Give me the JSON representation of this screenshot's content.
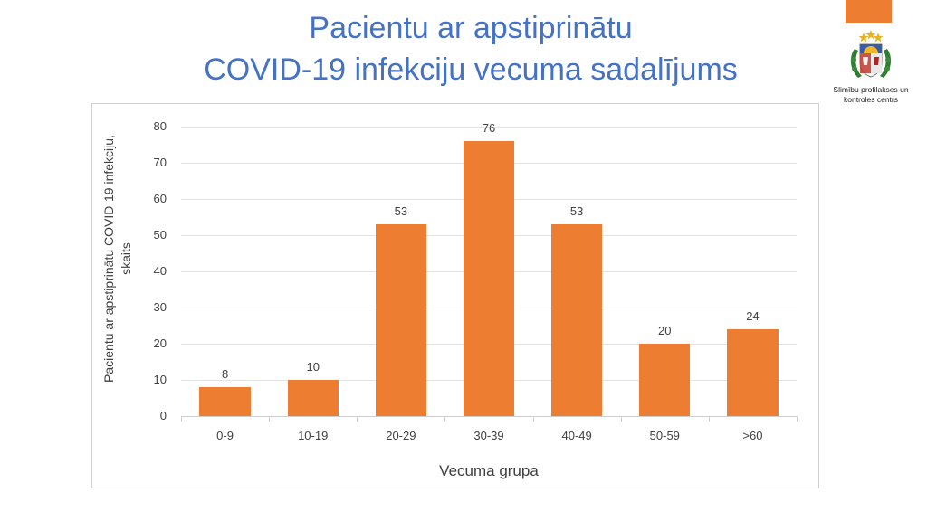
{
  "slide": {
    "title_line1": "Pacientu ar apstiprinātu",
    "title_line2": "COVID-19 infekciju vecuma sadalījums",
    "accent_color": "#ed7d31",
    "title_color": "#4472c4"
  },
  "logo": {
    "icon": "latvia-coat-of-arms-icon",
    "text_line1": "Slimību profilakses un",
    "text_line2": "kontroles centrs"
  },
  "chart_data": {
    "type": "bar",
    "title": "Pacientu ar apstiprinātu COVID-19 infekciju vecuma sadalījums",
    "categories": [
      "0-9",
      "10-19",
      "20-29",
      "30-39",
      "40-49",
      "50-59",
      ">60"
    ],
    "values": [
      8,
      10,
      53,
      76,
      53,
      20,
      24
    ],
    "xlabel": "Vecuma grupa",
    "ylabel": "Pacientu ar apstiprinātu COVID-19 infekciju, skaits",
    "ylim": [
      0,
      80
    ],
    "yticks": [
      0,
      10,
      20,
      30,
      40,
      50,
      60,
      70,
      80
    ],
    "grid": true,
    "data_labels": true,
    "bar_color": "#ed7d31",
    "legend": null
  }
}
